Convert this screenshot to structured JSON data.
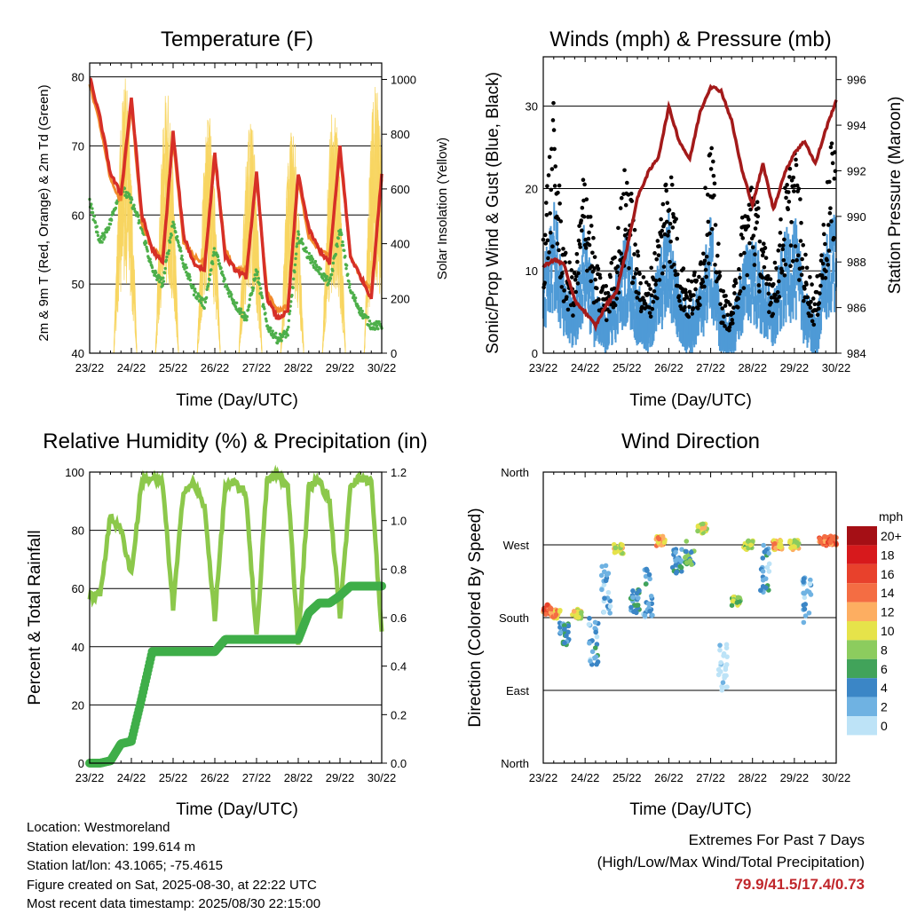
{
  "colors": {
    "temp_red": "#d62f27",
    "temp_orange": "#f28b2c",
    "dew_green": "#4daf4a",
    "solar_yellow": "#f7d560",
    "wind_blue": "#4f9ad6",
    "gust_black": "#000000",
    "pressure_maroon": "#a31a1a",
    "rh_green": "#8cc84b",
    "precip_green": "#3fae49"
  },
  "panels": {
    "temperature": {
      "title": "Temperature (F)",
      "xlabel": "Time (Day/UTC)",
      "ylabel_left": "2m & 9m T (Red, Orange) & 2m Td (Green)",
      "ylabel_right": "Solar Insolation (Yellow)"
    },
    "winds": {
      "title": "Winds (mph) & Pressure (mb)",
      "xlabel": "Time (Day/UTC)",
      "ylabel_left": "Sonic/Prop Wind & Gust (Blue, Black)",
      "ylabel_right": "Station Pressure (Maroon)"
    },
    "humidity": {
      "title": "Relative Humidity (%) & Precipitation (in)",
      "xlabel": "Time (Day/UTC)",
      "ylabel_left": "Percent & Total Rainfall"
    },
    "direction": {
      "title": "Wind Direction",
      "xlabel": "Time (Day/UTC)",
      "ylabel_left": "Direction (Colored By Speed)"
    }
  },
  "legend": {
    "unit": "mph",
    "labels": [
      "20+",
      "18",
      "16",
      "14",
      "12",
      "10",
      "8",
      "6",
      "4",
      "2",
      "0"
    ],
    "colors": [
      "#a50f15",
      "#d7191c",
      "#e8412c",
      "#f46d43",
      "#fdae61",
      "#e6e34a",
      "#8ccc5e",
      "#41a35a",
      "#3b86c6",
      "#6fb2e2",
      "#bde3f7"
    ]
  },
  "info": {
    "location": "Location: Westmoreland",
    "elevation": "Station elevation: 199.614 m",
    "latlon": "Station lat/lon: 43.1065; -75.4615",
    "created": "Figure created on Sat, 2025-08-30, at 22:22 UTC",
    "recent": "Most recent data timestamp: 2025/08/30 22:15:00"
  },
  "extremes": {
    "title": "Extremes For Past 7 Days",
    "subtitle": "(High/Low/Max Wind/Total Precipitation)",
    "values": "79.9/41.5/17.4/0.73"
  },
  "chart_data": [
    {
      "type": "line",
      "title": "Temperature (F)",
      "xlabel": "Time (Day/UTC)",
      "ylabel": "2m & 9m T (Red, Orange) & 2m Td (Green)",
      "y2label": "Solar Insolation (Yellow)",
      "x_ticks": [
        "23/22",
        "24/22",
        "25/22",
        "26/22",
        "27/22",
        "28/22",
        "29/22",
        "30/22"
      ],
      "ylim": [
        40,
        82
      ],
      "y_ticks": [
        40,
        50,
        60,
        70,
        80
      ],
      "y2lim": [
        0,
        1060
      ],
      "y2_ticks": [
        0,
        200,
        400,
        600,
        800,
        1000
      ],
      "x": [
        0,
        0.25,
        0.5,
        0.75,
        1,
        1.25,
        1.5,
        1.75,
        2,
        2.25,
        2.5,
        2.75,
        3,
        3.25,
        3.5,
        3.75,
        4,
        4.25,
        4.5,
        4.75,
        5,
        5.25,
        5.5,
        5.75,
        6,
        6.25,
        6.5,
        6.75,
        7
      ],
      "series": [
        {
          "name": "2m T",
          "color": "red",
          "values": [
            80,
            74,
            66,
            63,
            77,
            60,
            55,
            53,
            72,
            57,
            53,
            52,
            69,
            54,
            52,
            51,
            66,
            48,
            45,
            46,
            66,
            58,
            55,
            53,
            70,
            54,
            51,
            48,
            66
          ]
        },
        {
          "name": "9m T",
          "color": "orange",
          "values": [
            79,
            73,
            65,
            62,
            76,
            59,
            55,
            54,
            71,
            56,
            54,
            53,
            68,
            55,
            52,
            52,
            65,
            49,
            46,
            47,
            65,
            57,
            55,
            54,
            69,
            54,
            51,
            49,
            65
          ]
        },
        {
          "name": "2m Td",
          "color": "green",
          "values": [
            62,
            56,
            59,
            64,
            62,
            58,
            52,
            50,
            59,
            53,
            49,
            47,
            55,
            50,
            47,
            45,
            52,
            44,
            42,
            43,
            57,
            54,
            52,
            50,
            58,
            49,
            46,
            44,
            44
          ]
        },
        {
          "name": "Solar",
          "color": "yellow",
          "axis": "right",
          "daily_peak": [
            1010,
            980,
            870,
            880,
            850,
            920,
            1000
          ]
        }
      ]
    },
    {
      "type": "scatter",
      "title": "Winds (mph) & Pressure (mb)",
      "xlabel": "Time (Day/UTC)",
      "ylabel": "Sonic/Prop Wind & Gust (Blue, Black)",
      "y2label": "Station Pressure (Maroon)",
      "x_ticks": [
        "23/22",
        "24/22",
        "25/22",
        "26/22",
        "27/22",
        "28/22",
        "29/22",
        "30/22"
      ],
      "ylim": [
        0,
        36
      ],
      "y_ticks": [
        0,
        10,
        20,
        30
      ],
      "y2lim": [
        984,
        997
      ],
      "y2_ticks": [
        984,
        986,
        988,
        990,
        992,
        994,
        996
      ],
      "x": [
        0,
        0.25,
        0.5,
        0.75,
        1,
        1.25,
        1.5,
        1.75,
        2,
        2.25,
        2.5,
        2.75,
        3,
        3.25,
        3.5,
        3.75,
        4,
        4.25,
        4.5,
        4.75,
        5,
        5.25,
        5.5,
        5.75,
        6,
        6.25,
        6.5,
        6.75,
        7
      ],
      "series": [
        {
          "name": "Wind",
          "color": "blue",
          "values": [
            8,
            13,
            5,
            4,
            11,
            4,
            3,
            6,
            10,
            5,
            3,
            7,
            11,
            5,
            3,
            5,
            11,
            3,
            2,
            7,
            10,
            6,
            4,
            9,
            11,
            5,
            2,
            9,
            12
          ]
        },
        {
          "name": "Gust",
          "color": "black",
          "values": [
            12,
            22,
            9,
            7,
            18,
            8,
            6,
            10,
            18,
            9,
            6,
            11,
            19,
            9,
            6,
            9,
            20,
            6,
            4,
            12,
            17,
            10,
            7,
            14,
            19,
            9,
            5,
            14,
            22
          ]
        },
        {
          "name": "Pressure",
          "color": "maroon",
          "axis": "right",
          "values": [
            987.8,
            988.1,
            987.9,
            986.3,
            985.8,
            985.2,
            986.1,
            986.7,
            988.6,
            990.8,
            991.9,
            992.6,
            994.8,
            993.3,
            992.5,
            994.6,
            995.7,
            995.5,
            994.2,
            992.0,
            990.5,
            992.3,
            990.3,
            991.8,
            992.8,
            993.3,
            992.3,
            993.8,
            995.1
          ]
        }
      ]
    },
    {
      "type": "line",
      "title": "Relative Humidity (%) & Precipitation (in)",
      "xlabel": "Time (Day/UTC)",
      "ylabel": "Percent & Total Rainfall",
      "x_ticks": [
        "23/22",
        "24/22",
        "25/22",
        "26/22",
        "27/22",
        "28/22",
        "29/22",
        "30/22"
      ],
      "ylim": [
        0,
        100
      ],
      "y_ticks": [
        0,
        20,
        40,
        60,
        80,
        100
      ],
      "y2lim": [
        0,
        1.2
      ],
      "y2_ticks": [
        0.0,
        0.2,
        0.4,
        0.6,
        0.8,
        1.0,
        1.2
      ],
      "x": [
        0,
        0.25,
        0.5,
        0.75,
        1,
        1.25,
        1.5,
        1.75,
        2,
        2.25,
        2.5,
        2.75,
        3,
        3.25,
        3.5,
        3.75,
        4,
        4.25,
        4.5,
        4.75,
        5,
        5.25,
        5.5,
        5.75,
        6,
        6.25,
        6.5,
        6.75,
        7
      ],
      "series": [
        {
          "name": "RH",
          "color": "light green",
          "values": [
            57,
            58,
            85,
            80,
            65,
            97,
            98,
            96,
            53,
            94,
            96,
            88,
            50,
            95,
            96,
            92,
            43,
            97,
            99,
            95,
            42,
            95,
            97,
            90,
            50,
            96,
            98,
            97,
            44
          ]
        },
        {
          "name": "Precip",
          "color": "green",
          "axis": "right",
          "values": [
            0,
            0,
            0.01,
            0.08,
            0.09,
            0.27,
            0.46,
            0.46,
            0.46,
            0.46,
            0.46,
            0.46,
            0.46,
            0.51,
            0.51,
            0.51,
            0.51,
            0.51,
            0.51,
            0.51,
            0.51,
            0.62,
            0.66,
            0.66,
            0.69,
            0.73,
            0.73,
            0.73,
            0.73
          ]
        }
      ]
    },
    {
      "type": "scatter",
      "title": "Wind Direction",
      "xlabel": "Time (Day/UTC)",
      "ylabel": "Direction (Colored By Speed)",
      "x_ticks": [
        "23/22",
        "24/22",
        "25/22",
        "26/22",
        "27/22",
        "28/22",
        "29/22",
        "30/22"
      ],
      "y_ticks": [
        "North",
        "East",
        "South",
        "West",
        "North"
      ],
      "ylim": [
        0,
        360
      ],
      "color_scale_mph": [
        0,
        2,
        4,
        6,
        8,
        10,
        12,
        14,
        16,
        18,
        "20+"
      ],
      "points": [
        {
          "day": 0.1,
          "dir": 190,
          "speed": 14
        },
        {
          "day": 0.3,
          "dir": 185,
          "speed": 12
        },
        {
          "day": 0.5,
          "dir": 160,
          "speed": 4
        },
        {
          "day": 0.8,
          "dir": 185,
          "speed": 10
        },
        {
          "day": 1.2,
          "dir": 150,
          "speed": 3
        },
        {
          "day": 1.5,
          "dir": 215,
          "speed": 2
        },
        {
          "day": 1.8,
          "dir": 265,
          "speed": 10
        },
        {
          "day": 2.2,
          "dir": 200,
          "speed": 4
        },
        {
          "day": 2.5,
          "dir": 210,
          "speed": 3
        },
        {
          "day": 2.8,
          "dir": 275,
          "speed": 12
        },
        {
          "day": 3.2,
          "dir": 250,
          "speed": 4
        },
        {
          "day": 3.5,
          "dir": 260,
          "speed": 6
        },
        {
          "day": 3.8,
          "dir": 290,
          "speed": 10
        },
        {
          "day": 4.3,
          "dir": 120,
          "speed": 0
        },
        {
          "day": 4.6,
          "dir": 200,
          "speed": 8
        },
        {
          "day": 4.9,
          "dir": 270,
          "speed": 8
        },
        {
          "day": 5.3,
          "dir": 240,
          "speed": 3
        },
        {
          "day": 5.6,
          "dir": 270,
          "speed": 12
        },
        {
          "day": 6.0,
          "dir": 270,
          "speed": 10
        },
        {
          "day": 6.3,
          "dir": 200,
          "speed": 2
        },
        {
          "day": 6.7,
          "dir": 275,
          "speed": 14
        },
        {
          "day": 6.95,
          "dir": 275,
          "speed": 14
        }
      ]
    }
  ]
}
